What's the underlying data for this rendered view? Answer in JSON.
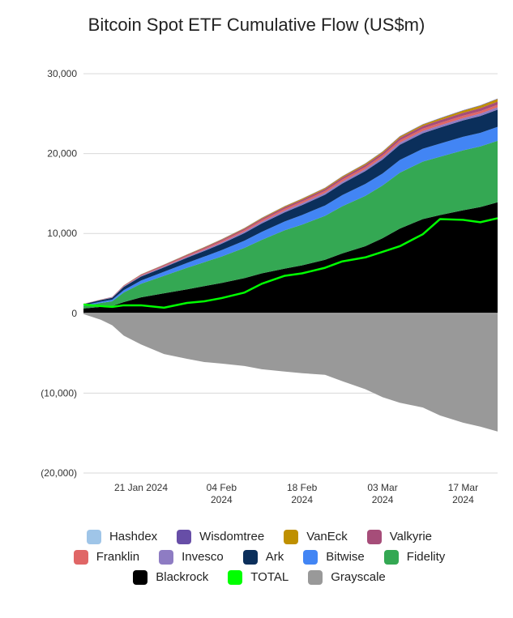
{
  "chart_data": {
    "type": "area",
    "stacked": true,
    "title": "Bitcoin Spot ETF Cumulative Flow (US$m)",
    "xlabel": "",
    "ylabel": "",
    "ylim": [
      -20000,
      30000
    ],
    "y_ticks": [
      30000,
      20000,
      10000,
      0,
      -10000,
      -20000
    ],
    "y_tick_labels": [
      "30,000",
      "20,000",
      "10,000",
      "0",
      "(10,000)",
      "(20,000)"
    ],
    "x_day_range": [
      0,
      72
    ],
    "x_ticks": [
      {
        "day": 10,
        "lines": [
          "21 Jan 2024"
        ]
      },
      {
        "day": 24,
        "lines": [
          "04 Feb",
          "2024"
        ]
      },
      {
        "day": 38,
        "lines": [
          "18 Feb",
          "2024"
        ]
      },
      {
        "day": 52,
        "lines": [
          "03 Mar",
          "2024"
        ]
      },
      {
        "day": 66,
        "lines": [
          "17 Mar",
          "2024"
        ]
      }
    ],
    "x": [
      0,
      3,
      5,
      7,
      10,
      14,
      18,
      21,
      24,
      28,
      31,
      35,
      38,
      42,
      45,
      49,
      52,
      55,
      59,
      62,
      66,
      69,
      72
    ],
    "series": [
      {
        "name": "Blackrock",
        "color": "#000000",
        "values": [
          600,
          800,
          900,
          1400,
          2000,
          2500,
          3000,
          3400,
          3800,
          4400,
          5000,
          5600,
          6000,
          6700,
          7500,
          8400,
          9400,
          10600,
          11800,
          12300,
          12900,
          13300,
          13900
        ]
      },
      {
        "name": "Fidelity",
        "color": "#34a853",
        "values": [
          300,
          500,
          600,
          1200,
          1700,
          2200,
          2700,
          3000,
          3300,
          3800,
          4200,
          4800,
          5100,
          5500,
          5900,
          6300,
          6600,
          7000,
          7200,
          7300,
          7500,
          7600,
          7700
        ]
      },
      {
        "name": "Bitwise",
        "color": "#4285f4",
        "values": [
          100,
          150,
          200,
          300,
          400,
          500,
          600,
          700,
          800,
          900,
          1000,
          1100,
          1200,
          1300,
          1400,
          1500,
          1500,
          1600,
          1600,
          1650,
          1700,
          1700,
          1750
        ]
      },
      {
        "name": "Ark",
        "color": "#0b2f5b",
        "values": [
          150,
          200,
          250,
          400,
          500,
          550,
          650,
          700,
          800,
          950,
          1050,
          1150,
          1250,
          1350,
          1450,
          1600,
          1750,
          1900,
          1950,
          2000,
          2050,
          2100,
          2150
        ]
      },
      {
        "name": "Invesco",
        "color": "#8e7cc3",
        "values": [
          10,
          20,
          30,
          60,
          80,
          100,
          120,
          140,
          160,
          180,
          200,
          210,
          220,
          230,
          240,
          250,
          260,
          270,
          280,
          290,
          290,
          300,
          300
        ]
      },
      {
        "name": "Franklin",
        "color": "#e06666",
        "values": [
          10,
          20,
          30,
          60,
          80,
          100,
          120,
          140,
          160,
          180,
          200,
          220,
          230,
          240,
          250,
          260,
          270,
          280,
          290,
          300,
          300,
          310,
          310
        ]
      },
      {
        "name": "Valkyrie",
        "color": "#a64d79",
        "values": [
          10,
          20,
          30,
          50,
          80,
          100,
          120,
          140,
          160,
          180,
          200,
          220,
          230,
          250,
          260,
          280,
          300,
          320,
          340,
          360,
          370,
          380,
          390
        ]
      },
      {
        "name": "VanEck",
        "color": "#bf9000",
        "values": [
          5,
          10,
          10,
          20,
          30,
          40,
          50,
          60,
          70,
          80,
          90,
          100,
          110,
          120,
          130,
          140,
          150,
          160,
          170,
          200,
          260,
          300,
          330
        ]
      },
      {
        "name": "Wisdomtree",
        "color": "#674ea7",
        "values": [
          0,
          5,
          5,
          10,
          10,
          15,
          15,
          20,
          20,
          25,
          25,
          30,
          30,
          35,
          35,
          40,
          40,
          45,
          45,
          50,
          50,
          55,
          55
        ]
      },
      {
        "name": "Hashdex",
        "color": "#9fc5e8",
        "values": [
          0,
          0,
          0,
          5,
          5,
          5,
          10,
          10,
          10,
          10,
          15,
          15,
          15,
          15,
          20,
          20,
          20,
          20,
          25,
          25,
          25,
          25,
          25
        ]
      }
    ],
    "negative_series": {
      "name": "Grayscale",
      "color": "#999999",
      "values": [
        -100,
        -800,
        -1500,
        -2800,
        -3900,
        -5100,
        -5700,
        -6100,
        -6300,
        -6600,
        -7000,
        -7300,
        -7500,
        -7700,
        -8500,
        -9500,
        -10500,
        -11200,
        -11800,
        -12800,
        -13700,
        -14200,
        -14800
      ]
    },
    "line_series": {
      "name": "TOTAL",
      "color": "#00ff00",
      "values": [
        1100,
        900,
        800,
        1000,
        1000,
        700,
        1300,
        1500,
        1900,
        2600,
        3700,
        4700,
        5000,
        5700,
        6500,
        7000,
        7700,
        8400,
        9900,
        11800,
        11700,
        11400,
        11900
      ]
    },
    "legend": {
      "placement": "bottom",
      "rows": [
        [
          {
            "name": "Hashdex",
            "color": "#9fc5e8"
          },
          {
            "name": "Wisdomtree",
            "color": "#674ea7"
          },
          {
            "name": "VanEck",
            "color": "#bf9000"
          },
          {
            "name": "Valkyrie",
            "color": "#a64d79"
          }
        ],
        [
          {
            "name": "Franklin",
            "color": "#e06666"
          },
          {
            "name": "Invesco",
            "color": "#8e7cc3"
          },
          {
            "name": "Ark",
            "color": "#0b2f5b"
          },
          {
            "name": "Bitwise",
            "color": "#4285f4"
          },
          {
            "name": "Fidelity",
            "color": "#34a853"
          }
        ],
        [
          {
            "name": "Blackrock",
            "color": "#000000"
          },
          {
            "name": "TOTAL",
            "color": "#00ff00"
          },
          {
            "name": "Grayscale",
            "color": "#999999"
          }
        ]
      ]
    },
    "grid": true,
    "gridline_color": "#d9d9d9"
  }
}
